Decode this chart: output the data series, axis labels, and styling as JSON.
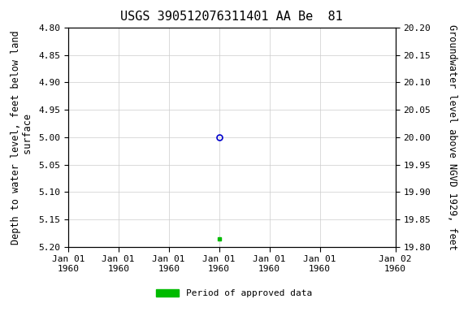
{
  "title": "USGS 390512076311401 AA Be  81",
  "ylabel_left": "Depth to water level, feet below land\n surface",
  "ylabel_right": "Groundwater level above NGVD 1929, feet",
  "ylim_left_top": 4.8,
  "ylim_left_bottom": 5.2,
  "ylim_right_top": 20.2,
  "ylim_right_bottom": 19.8,
  "yticks_left": [
    4.8,
    4.85,
    4.9,
    4.95,
    5.0,
    5.05,
    5.1,
    5.15,
    5.2
  ],
  "yticks_right": [
    20.2,
    20.15,
    20.1,
    20.05,
    20.0,
    19.95,
    19.9,
    19.85,
    19.8
  ],
  "open_circle_x_days": 3.0,
  "open_circle_value": 5.0,
  "filled_square_x_days": 3.0,
  "filled_square_value": 5.185,
  "x_start_days": 0,
  "x_end_days": 6.5,
  "x_tick_days": [
    0,
    1,
    2,
    3,
    4,
    5,
    6.5
  ],
  "x_tick_labels": [
    "Jan 01\n1960",
    "Jan 01\n1960",
    "Jan 01\n1960",
    "Jan 01\n1960",
    "Jan 01\n1960",
    "Jan 01\n1960",
    "Jan 02\n1960"
  ],
  "legend_label": "Period of approved data",
  "legend_color": "#00bb00",
  "bg_color": "#ffffff",
  "grid_color": "#cccccc",
  "open_circle_color": "#0000cc",
  "filled_square_color": "#00bb00",
  "title_fontsize": 11,
  "label_fontsize": 8.5,
  "tick_fontsize": 8
}
